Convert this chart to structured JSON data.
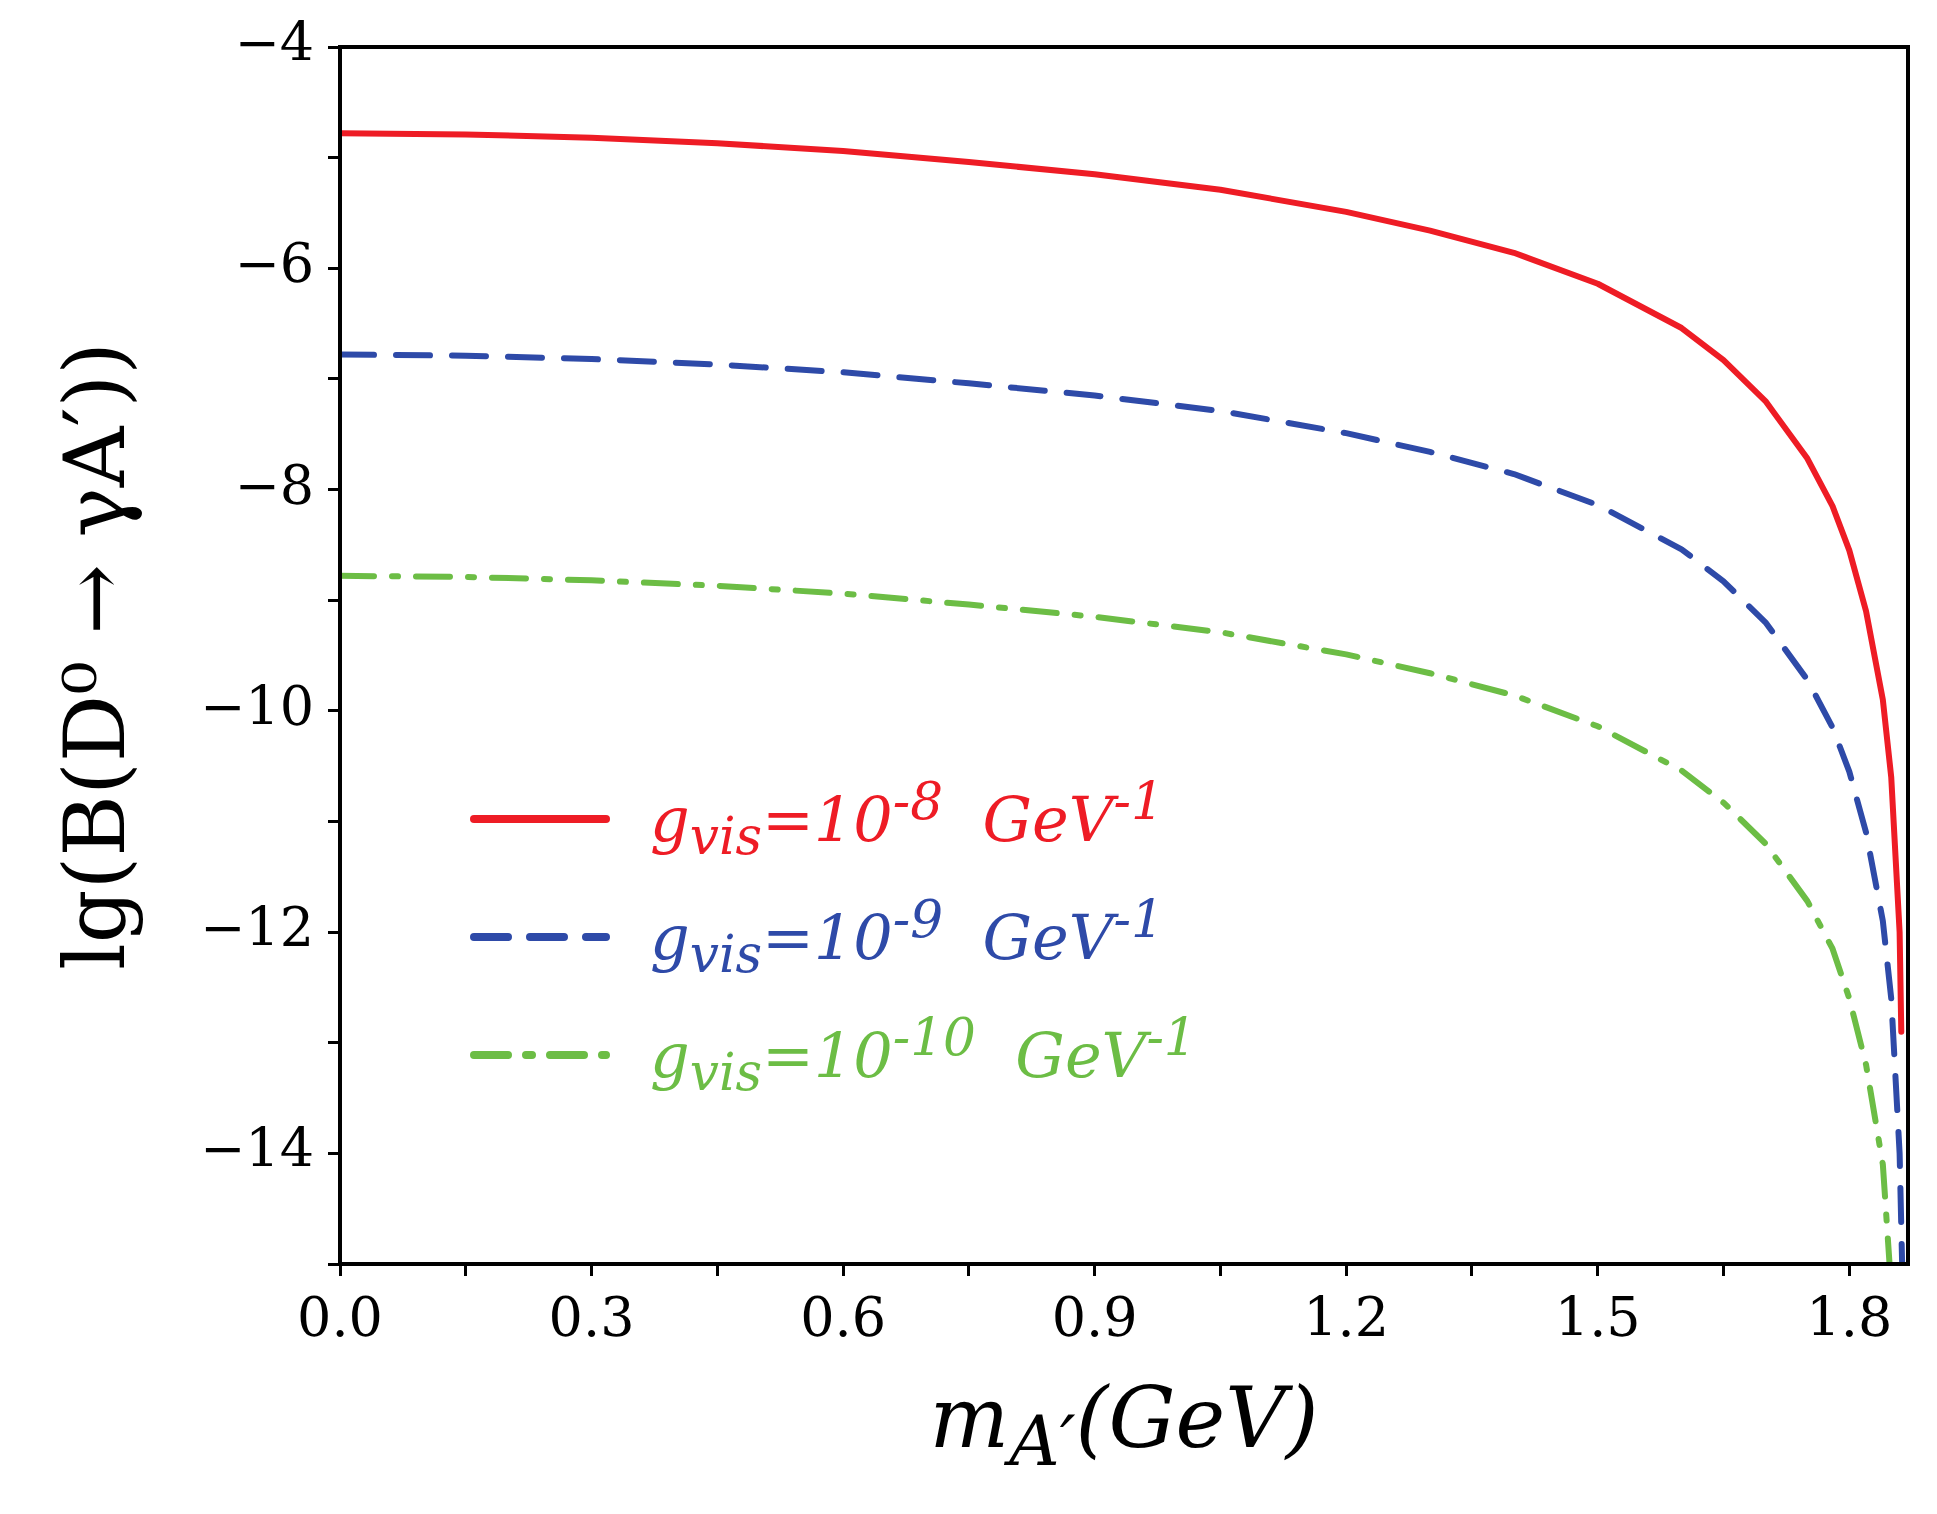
{
  "chart_data": {
    "type": "line",
    "xlabel": "m$_{A′}$(GeV)",
    "ylabel": "lg(B(D⁰ → γA′))",
    "x": [
      0,
      0.15,
      0.3,
      0.45,
      0.6,
      0.75,
      0.9,
      1.05,
      1.2,
      1.3,
      1.4,
      1.5,
      1.6,
      1.65,
      1.7,
      1.75,
      1.78,
      1.8,
      1.82,
      1.84,
      1.85,
      1.86,
      1.862
    ],
    "series": [
      {
        "name": "g$_{vis}$=10$^{-8}$  GeV$^{-1}$",
        "color": "#ee1c25",
        "line_style": "solid",
        "values": [
          -4.78,
          -4.79,
          -4.82,
          -4.87,
          -4.94,
          -5.04,
          -5.15,
          -5.29,
          -5.49,
          -5.66,
          -5.86,
          -6.14,
          -6.54,
          -6.83,
          -7.2,
          -7.72,
          -8.15,
          -8.55,
          -9.1,
          -9.9,
          -10.6,
          -12.0,
          -12.9
        ]
      },
      {
        "name": "g$_{vis}$=10$^{-9}$  GeV$^{-1}$",
        "color": "#2e4aa8",
        "line_style": "dashed",
        "x": [
          0,
          0.15,
          0.3,
          0.45,
          0.6,
          0.75,
          0.9,
          1.05,
          1.2,
          1.3,
          1.4,
          1.5,
          1.6,
          1.65,
          1.7,
          1.75,
          1.78,
          1.8,
          1.82,
          1.84,
          1.85,
          1.86,
          1.863
        ],
        "values": [
          -6.78,
          -6.79,
          -6.82,
          -6.87,
          -6.94,
          -7.04,
          -7.15,
          -7.29,
          -7.49,
          -7.66,
          -7.86,
          -8.14,
          -8.54,
          -8.83,
          -9.2,
          -9.72,
          -10.15,
          -10.55,
          -11.1,
          -11.9,
          -12.6,
          -14.0,
          -15
        ]
      },
      {
        "name": "g$_{vis}$=10$^{-10}$  GeV$^{-1}$",
        "color": "#6cbd45",
        "line_style": "dashdot",
        "x": [
          0,
          0.15,
          0.3,
          0.45,
          0.6,
          0.75,
          0.9,
          1.05,
          1.2,
          1.3,
          1.4,
          1.5,
          1.6,
          1.65,
          1.7,
          1.75,
          1.78,
          1.8,
          1.82,
          1.84,
          1.848
        ],
        "values": [
          -8.78,
          -8.79,
          -8.82,
          -8.87,
          -8.94,
          -9.04,
          -9.15,
          -9.29,
          -9.49,
          -9.66,
          -9.86,
          -10.14,
          -10.54,
          -10.83,
          -11.2,
          -11.72,
          -12.15,
          -12.6,
          -13.2,
          -14.1,
          -15
        ]
      }
    ],
    "xlim": [
      0,
      1.87
    ],
    "xticks": [
      {
        "value": 0,
        "label": "0.0"
      },
      {
        "value": 0.15,
        "label": null
      },
      {
        "value": 0.3,
        "label": "0.3"
      },
      {
        "value": 0.45,
        "label": null
      },
      {
        "value": 0.6,
        "label": "0.6"
      },
      {
        "value": 0.75,
        "label": null
      },
      {
        "value": 0.9,
        "label": "0.9"
      },
      {
        "value": 1.05,
        "label": null
      },
      {
        "value": 1.2,
        "label": "1.2"
      },
      {
        "value": 1.35,
        "label": null
      },
      {
        "value": 1.5,
        "label": "1.5"
      },
      {
        "value": 1.65,
        "label": null
      },
      {
        "value": 1.8,
        "label": "1.8"
      }
    ],
    "ylim": [
      -15,
      -4
    ],
    "yticks": [
      -4,
      {
        "value": -5,
        "label": null
      },
      -6,
      {
        "value": -7,
        "label": null
      },
      -8,
      {
        "value": -9,
        "label": null
      },
      -10,
      {
        "value": -11,
        "label": null
      },
      -12,
      {
        "value": -13,
        "label": null
      },
      -14,
      {
        "value": -15,
        "label": null
      }
    ],
    "grid": false,
    "legend": "bottom left"
  }
}
